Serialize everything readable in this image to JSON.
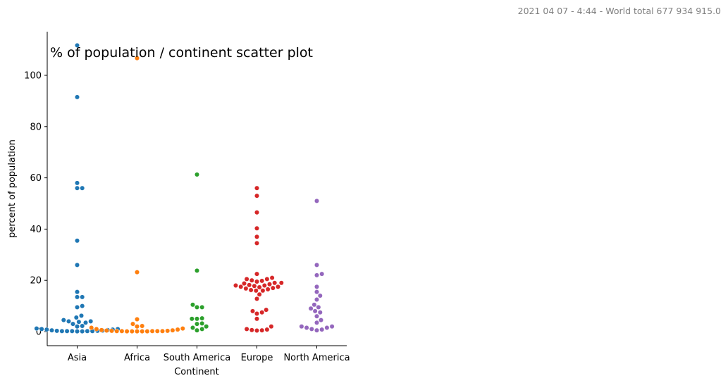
{
  "timestamp_text": "2021 04 07 - 4:44 - World total 677 934 915.0",
  "chart_data": {
    "type": "scatter",
    "subtype": "swarm",
    "title": "% of population / continent scatter plot",
    "xlabel": "Continent",
    "ylabel": "percent of population",
    "ylim": [
      -5,
      117
    ],
    "yticks": [
      0,
      20,
      40,
      60,
      80,
      100
    ],
    "grid": false,
    "legend": "none",
    "categories": [
      "Asia",
      "Africa",
      "South America",
      "Europe",
      "North America"
    ],
    "colors": [
      "#1f77b4",
      "#ff7f0e",
      "#2ca02c",
      "#d62728",
      "#9467bd"
    ],
    "series": [
      {
        "values": [
          111.7,
          91.5,
          58.0,
          56.0,
          56.0,
          35.5,
          26.0,
          15.5,
          13.5,
          13.5,
          10.0,
          9.5,
          6.2,
          5.5,
          4.5,
          4.0,
          4.0,
          3.8,
          3.5,
          3.0,
          2.2,
          2.0,
          1.2,
          1.0,
          1.0,
          0.8,
          0.8,
          0.6,
          0.5,
          0.4,
          0.3,
          0.3,
          0.2,
          0.2,
          0.2,
          0.2,
          0.2,
          0.1,
          0.1
        ]
      },
      {
        "values": [
          106.7,
          23.2,
          4.8,
          3.0,
          2.2,
          2.0,
          1.5,
          1.2,
          1.0,
          0.8,
          0.6,
          0.5,
          0.4,
          0.3,
          0.3,
          0.2,
          0.2,
          0.2,
          0.2,
          0.2,
          0.1,
          0.1,
          0.1,
          0.1,
          0.1
        ]
      },
      {
        "values": [
          61.3,
          23.8,
          10.5,
          9.5,
          9.5,
          5.2,
          5.0,
          5.0,
          3.2,
          3.0,
          2.0,
          1.5,
          1.0,
          0.5
        ]
      },
      {
        "values": [
          56.0,
          53.0,
          46.5,
          40.3,
          37.0,
          34.5,
          22.5,
          21.0,
          20.5,
          20.5,
          20.0,
          19.8,
          19.5,
          19.0,
          19.0,
          18.8,
          18.5,
          18.2,
          18.0,
          18.0,
          17.8,
          17.5,
          17.5,
          17.3,
          17.0,
          16.8,
          16.5,
          16.2,
          16.0,
          16.0,
          14.5,
          12.8,
          8.5,
          8.0,
          7.5,
          7.0,
          5.0,
          2.0,
          1.0,
          0.8,
          0.6,
          0.5,
          0.4
        ]
      },
      {
        "values": [
          51.0,
          26.0,
          22.5,
          22.0,
          17.5,
          15.5,
          14.0,
          12.5,
          10.5,
          9.5,
          9.0,
          8.0,
          7.5,
          6.0,
          4.5,
          3.5,
          2.0,
          2.0,
          1.5,
          1.5,
          1.0,
          0.8,
          0.5
        ]
      }
    ]
  }
}
